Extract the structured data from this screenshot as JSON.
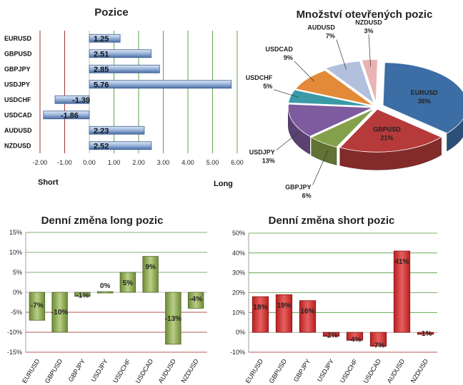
{
  "colors": {
    "bar_positions": "#5c82b8",
    "long_bars": "#8faa52",
    "short_bars": "#d13a3a",
    "grid_green": "#4f9a3a",
    "grid_red": "#9a1f1f",
    "pie": [
      "#3c6ea5",
      "#b63a3a",
      "#85a04a",
      "#7e5a9e",
      "#3b9aa8",
      "#e38a38",
      "#9fb0d6",
      "#e3a0a0"
    ]
  },
  "chart_data": [
    {
      "id": "positions",
      "type": "bar",
      "orientation": "horizontal",
      "title": "Pozice",
      "categories": [
        "EURUSD",
        "GBPUSD",
        "GBPJPY",
        "USDJPY",
        "USDCHF",
        "USDCAD",
        "AUDUSD",
        "NZDUSD"
      ],
      "values": [
        1.25,
        2.51,
        2.85,
        5.76,
        -1.39,
        -1.86,
        2.23,
        2.52
      ],
      "value_labels": [
        "1.25",
        "2.51",
        "2.85",
        "5.76",
        "-1.39",
        "-1.86",
        "2.23",
        "2.52"
      ],
      "xlim": [
        -2,
        6
      ],
      "xticks": [
        "-2.00",
        "-1.00",
        "0.00",
        "1.00",
        "2.00",
        "3.00",
        "4.00",
        "5.00",
        "6.00"
      ],
      "left_label": "Short",
      "right_label": "Long",
      "grid": true
    },
    {
      "id": "open_positions",
      "type": "pie",
      "title": "Množství otevřených pozic",
      "categories": [
        "EURUSD",
        "GBPUSD",
        "GBPJPY",
        "USDJPY",
        "USDCHF",
        "USDCAD",
        "AUDUSD",
        "NZDUSD"
      ],
      "values": [
        36,
        21,
        6,
        13,
        5,
        9,
        7,
        3
      ],
      "value_labels": [
        "36%",
        "21%",
        "6%",
        "13%",
        "5%",
        "9%",
        "7%",
        "3%"
      ]
    },
    {
      "id": "long_change",
      "type": "bar",
      "title": "Denní změna long pozic",
      "categories": [
        "EURUSD",
        "GBPUSD",
        "GBPJPY",
        "USDJPY",
        "USDCHF",
        "USDCAD",
        "AUDUSD",
        "NZDUSD"
      ],
      "values": [
        -7,
        -10,
        -1,
        0,
        5,
        9,
        -13,
        -4
      ],
      "value_labels": [
        "-7%",
        "-10%",
        "-1%",
        "0%",
        "5%",
        "9%",
        "-13%",
        "-4%"
      ],
      "ylim": [
        -15,
        15
      ],
      "yticks": [
        "15%",
        "10%",
        "5%",
        "0%",
        "-5%",
        "-10%",
        "-15%"
      ],
      "grid": true
    },
    {
      "id": "short_change",
      "type": "bar",
      "title": "Denní změna short pozic",
      "categories": [
        "EURUSD",
        "GBPUSD",
        "GBPJPY",
        "USDJPY",
        "USDCHF",
        "USDCAD",
        "AUDUSD",
        "NZDUSD"
      ],
      "values": [
        18,
        19,
        16,
        -2,
        -4,
        -7,
        41,
        -1
      ],
      "value_labels": [
        "18%",
        "19%",
        "16%",
        "-2%",
        "-4%",
        "-7%",
        "41%",
        "-1%"
      ],
      "ylim": [
        -10,
        50
      ],
      "yticks": [
        "50%",
        "40%",
        "30%",
        "20%",
        "10%",
        "0%",
        "-10%"
      ],
      "grid": true
    }
  ]
}
